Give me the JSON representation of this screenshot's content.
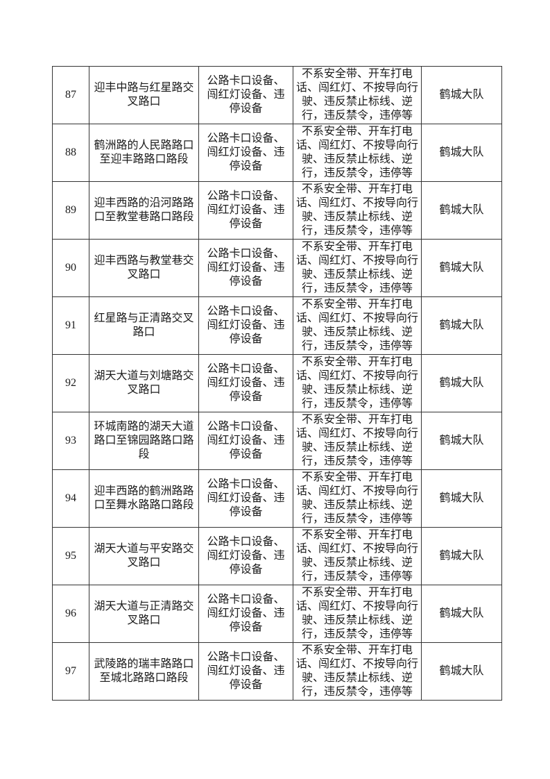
{
  "colors": {
    "page_background": "#ffffff",
    "table_border": "#333333",
    "text": "#1a1a1a"
  },
  "table": {
    "rows": [
      {
        "seq": "87",
        "location": "迎丰中路与红星路交叉路口",
        "equipment": "公路卡口设备、闯红灯设备、违停设备",
        "violations": "不系安全带、开车打电话、闯红灯、不按导向行驶、违反禁止标线、逆行，违反禁令，违停等",
        "unit": "鹤城大队"
      },
      {
        "seq": "88",
        "location": "鹤洲路的人民路路口至迎丰路路口路段",
        "equipment": "公路卡口设备、闯红灯设备、违停设备",
        "violations": "不系安全带、开车打电话、闯红灯、不按导向行驶、违反禁止标线、逆行，违反禁令，违停等",
        "unit": "鹤城大队"
      },
      {
        "seq": "89",
        "location": "迎丰西路的沿河路路口至教堂巷路口路段",
        "equipment": "公路卡口设备、闯红灯设备、违停设备",
        "violations": "不系安全带、开车打电话、闯红灯、不按导向行驶、违反禁止标线、逆行，违反禁令，违停等",
        "unit": "鹤城大队"
      },
      {
        "seq": "90",
        "location": "迎丰西路与教堂巷交叉路口",
        "equipment": "公路卡口设备、闯红灯设备、违停设备",
        "violations": "不系安全带、开车打电话、闯红灯、不按导向行驶、违反禁止标线、逆行，违反禁令，违停等",
        "unit": "鹤城大队"
      },
      {
        "seq": "91",
        "location": "红星路与正清路交叉路口",
        "equipment": "公路卡口设备、闯红灯设备、违停设备",
        "violations": "不系安全带、开车打电话、闯红灯、不按导向行驶、违反禁止标线、逆行，违反禁令，违停等",
        "unit": "鹤城大队"
      },
      {
        "seq": "92",
        "location": "湖天大道与刘塘路交叉路口",
        "equipment": "公路卡口设备、闯红灯设备、违停设备",
        "violations": "不系安全带、开车打电话、闯红灯、不按导向行驶、违反禁止标线、逆行，违反禁令，违停等",
        "unit": "鹤城大队"
      },
      {
        "seq": "93",
        "location": "环城南路的湖天大道路口至锦园路路口路段",
        "equipment": "公路卡口设备、闯红灯设备、违停设备",
        "violations": "不系安全带、开车打电话、闯红灯、不按导向行驶、违反禁止标线、逆行，违反禁令，违停等",
        "unit": "鹤城大队"
      },
      {
        "seq": "94",
        "location": "迎丰西路的鹤洲路路口至舞水路路口路段",
        "equipment": "公路卡口设备、闯红灯设备、违停设备",
        "violations": "不系安全带、开车打电话、闯红灯、不按导向行驶、违反禁止标线、逆行，违反禁令，违停等",
        "unit": "鹤城大队"
      },
      {
        "seq": "95",
        "location": "湖天大道与平安路交叉路口",
        "equipment": "公路卡口设备、闯红灯设备、违停设备",
        "violations": "不系安全带、开车打电话、闯红灯、不按导向行驶、违反禁止标线、逆行，违反禁令，违停等",
        "unit": "鹤城大队"
      },
      {
        "seq": "96",
        "location": "湖天大道与正清路交叉路口",
        "equipment": "公路卡口设备、闯红灯设备、违停设备",
        "violations": "不系安全带、开车打电话、闯红灯、不按导向行驶、违反禁止标线、逆行，违反禁令，违停等",
        "unit": "鹤城大队"
      },
      {
        "seq": "97",
        "location": "武陵路的瑞丰路路口至城北路路口路段",
        "equipment": "公路卡口设备、闯红灯设备、违停设备",
        "violations": "不系安全带、开车打电话、闯红灯、不按导向行驶、违反禁止标线、逆行，违反禁令，违停等",
        "unit": "鹤城大队"
      }
    ]
  }
}
